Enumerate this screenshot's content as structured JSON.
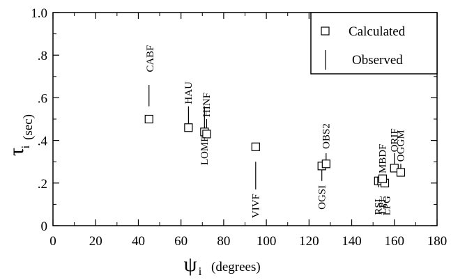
{
  "chart_data": {
    "type": "scatter",
    "xlabel": {
      "symbol": "ψ",
      "subscript": "i",
      "unit": "(degrees)"
    },
    "ylabel": {
      "symbol": "τ",
      "subscript": "i",
      "unit": "(sec)"
    },
    "xlim": [
      0,
      180
    ],
    "ylim": [
      0,
      1.0
    ],
    "x_ticks": [
      {
        "value": 0,
        "label": "0"
      },
      {
        "value": 20,
        "label": "20"
      },
      {
        "value": 40,
        "label": "40"
      },
      {
        "value": 60,
        "label": "60"
      },
      {
        "value": 80,
        "label": "80"
      },
      {
        "value": 100,
        "label": "100"
      },
      {
        "value": 120,
        "label": "120"
      },
      {
        "value": 140,
        "label": "140"
      },
      {
        "value": 160,
        "label": "160"
      },
      {
        "value": 180,
        "label": "180"
      }
    ],
    "y_ticks": [
      {
        "value": 0,
        "label": "0"
      },
      {
        "value": 0.2,
        "label": ".2"
      },
      {
        "value": 0.4,
        "label": ".4"
      },
      {
        "value": 0.6,
        "label": ".6"
      },
      {
        "value": 0.8,
        "label": ".8"
      },
      {
        "value": 1.0,
        "label": "1.0"
      }
    ],
    "grid": false,
    "legend": {
      "placement": "top-right",
      "entries": [
        {
          "label": "Calculated",
          "marker": "square"
        },
        {
          "label": "Observed",
          "marker": "vertical-line"
        }
      ]
    },
    "series": [
      {
        "name": "Calculated",
        "points": [
          {
            "station": "CABF",
            "x": 45,
            "y": 0.5
          },
          {
            "station": "HAU",
            "x": 63.5,
            "y": 0.46
          },
          {
            "station": "LOMF",
            "x": 71,
            "y": 0.44
          },
          {
            "station": "HINF",
            "x": 72,
            "y": 0.43
          },
          {
            "station": "VIVF",
            "x": 95,
            "y": 0.37
          },
          {
            "station": "OGSI",
            "x": 126,
            "y": 0.28
          },
          {
            "station": "OBS2",
            "x": 128,
            "y": 0.29
          },
          {
            "station": "RSL",
            "x": 152.5,
            "y": 0.21
          },
          {
            "station": "LPL",
            "x": 154,
            "y": 0.21
          },
          {
            "station": "LPG",
            "x": 155.5,
            "y": 0.2
          },
          {
            "station": "MBDF",
            "x": 154.5,
            "y": 0.22
          },
          {
            "station": "ORIF",
            "x": 160,
            "y": 0.27
          },
          {
            "station": "OGGM",
            "x": 163,
            "y": 0.25
          }
        ]
      },
      {
        "name": "Observed",
        "segments": [
          {
            "station": "CABF",
            "x": 45,
            "y_low": 0.56,
            "y_high": 0.66
          },
          {
            "station": "HAU",
            "x": 63.5,
            "y_low": 0.48,
            "y_high": 0.56
          },
          {
            "station": "LOMF",
            "x": 71,
            "y_low": 0.45,
            "y_high": 0.56
          },
          {
            "station": "HINF",
            "x": 72,
            "y_low": 0.46,
            "y_high": 0.5
          },
          {
            "station": "VIVF",
            "x": 95,
            "y_low": 0.17,
            "y_high": 0.3
          },
          {
            "station": "OGSI",
            "x": 126,
            "y_low": 0.21,
            "y_high": 0.27
          },
          {
            "station": "OBS2",
            "x": 128,
            "y_low": 0.31,
            "y_high": 0.34
          },
          {
            "station": "RSL",
            "x": 152.5,
            "y_low": 0.18,
            "y_high": 0.22
          },
          {
            "station": "LPL",
            "x": 154,
            "y_low": 0.18,
            "y_high": 0.22
          },
          {
            "station": "LPG",
            "x": 155.5,
            "y_low": 0.18,
            "y_high": 0.22
          },
          {
            "station": "MBDF",
            "x": 154.5,
            "y_low": 0.19,
            "y_high": 0.24
          },
          {
            "station": "ORIF",
            "x": 160,
            "y_low": 0.29,
            "y_high": 0.34
          },
          {
            "station": "OGGM",
            "x": 163,
            "y_low": 0.26,
            "y_high": 0.29
          }
        ]
      }
    ],
    "station_labels": [
      {
        "text": "CABF",
        "x": 47,
        "y": 0.72,
        "anchor": "start"
      },
      {
        "text": "HAU",
        "x": 65,
        "y": 0.57,
        "anchor": "start"
      },
      {
        "text": "HINF",
        "x": 73.5,
        "y": 0.51,
        "anchor": "start"
      },
      {
        "text": "LOMF",
        "x": 72.5,
        "y": 0.42,
        "anchor": "end"
      },
      {
        "text": "VIVF",
        "x": 96.5,
        "y": 0.15,
        "anchor": "end"
      },
      {
        "text": "OGSI",
        "x": 127.5,
        "y": 0.19,
        "anchor": "end"
      },
      {
        "text": "OBS2",
        "x": 129.5,
        "y": 0.36,
        "anchor": "start"
      },
      {
        "text": "RSL",
        "x": 154,
        "y": 0.14,
        "anchor": "end"
      },
      {
        "text": "LPL",
        "x": 156,
        "y": 0.14,
        "anchor": "end"
      },
      {
        "text": "LPG",
        "x": 158,
        "y": 0.14,
        "anchor": "end"
      },
      {
        "text": "MBDF",
        "x": 156,
        "y": 0.245,
        "anchor": "start"
      },
      {
        "text": "ORIF",
        "x": 161.5,
        "y": 0.345,
        "anchor": "start"
      },
      {
        "text": "OGGM",
        "x": 164.5,
        "y": 0.3,
        "anchor": "start"
      }
    ]
  }
}
